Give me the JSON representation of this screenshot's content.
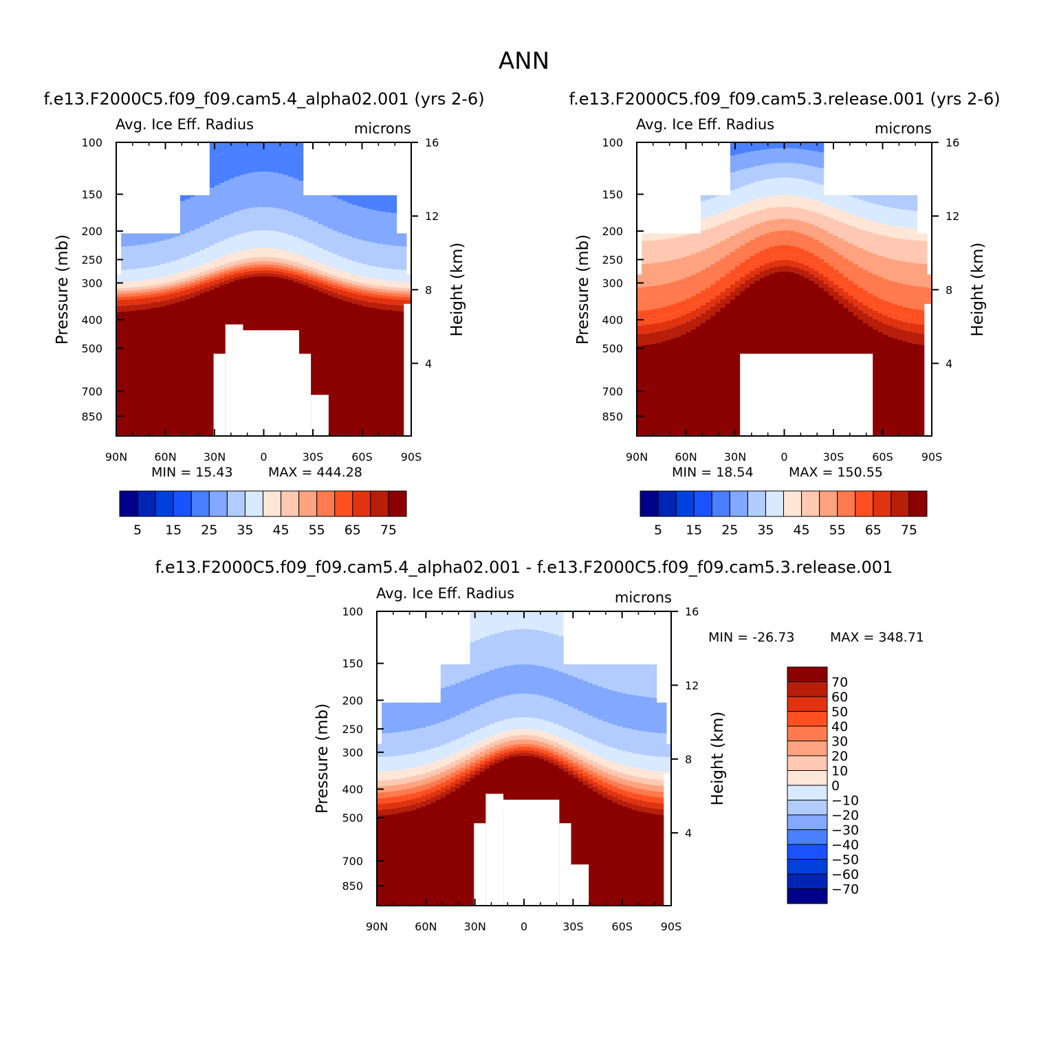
{
  "page_title": "ANN",
  "palette": [
    "#00008b",
    "#0024b3",
    "#0040dd",
    "#1a52ff",
    "#4a7fff",
    "#82a8ff",
    "#b2ccff",
    "#d9e9ff",
    "#ffe6d7",
    "#ffc8b2",
    "#ffa27f",
    "#ff7a4e",
    "#ff5022",
    "#e13310",
    "#b81e0a",
    "#8b0000"
  ],
  "chart_data": [
    {
      "type": "heatmap",
      "title": "f.e13.F2000C5.f09_f09.cam5.4_alpha02.001 (yrs 2-6)",
      "left_label": "Avg. Ice Eff. Radius",
      "right_label": "microns",
      "ylabel": "Pressure (mb)",
      "y2label": "Height (km)",
      "x_ticks": [
        "90N",
        "60N",
        "30N",
        "0",
        "30S",
        "60S",
        "90S"
      ],
      "y_ticks": [
        "100",
        "150",
        "200",
        "250",
        "300",
        "400",
        "500",
        "700",
        "850"
      ],
      "y2_ticks": [
        "16",
        "12",
        "8",
        "4"
      ],
      "min_label": "MIN = 15.43",
      "max_label": "MAX = 444.28",
      "min": 15.43,
      "max": 444.28,
      "colorbar_labels": [
        "5",
        "15",
        "25",
        "35",
        "45",
        "55",
        "65",
        "75"
      ]
    },
    {
      "type": "heatmap",
      "title": "f.e13.F2000C5.f09_f09.cam5.3.release.001 (yrs 2-6)",
      "left_label": "Avg. Ice Eff. Radius",
      "right_label": "microns",
      "ylabel": "Pressure (mb)",
      "y2label": "Height (km)",
      "x_ticks": [
        "90N",
        "60N",
        "30N",
        "0",
        "30S",
        "60S",
        "90S"
      ],
      "y_ticks": [
        "100",
        "150",
        "200",
        "250",
        "300",
        "400",
        "500",
        "700",
        "850"
      ],
      "y2_ticks": [
        "16",
        "12",
        "8",
        "4"
      ],
      "min_label": "MIN = 18.54",
      "max_label": "MAX = 150.55",
      "min": 18.54,
      "max": 150.55,
      "colorbar_labels": [
        "5",
        "15",
        "25",
        "35",
        "45",
        "55",
        "65",
        "75"
      ]
    },
    {
      "type": "heatmap",
      "title": "f.e13.F2000C5.f09_f09.cam5.4_alpha02.001 - f.e13.F2000C5.f09_f09.cam5.3.release.001",
      "left_label": "Avg. Ice Eff. Radius",
      "right_label": "microns",
      "ylabel": "Pressure (mb)",
      "y2label": "Height (km)",
      "x_ticks": [
        "90N",
        "60N",
        "30N",
        "0",
        "30S",
        "60S",
        "90S"
      ],
      "y_ticks": [
        "100",
        "150",
        "200",
        "250",
        "300",
        "400",
        "500",
        "700",
        "850"
      ],
      "y2_ticks": [
        "16",
        "12",
        "8",
        "4"
      ],
      "min_label": "MIN = -26.73",
      "max_label": "MAX = 348.71",
      "min": -26.73,
      "max": 348.71,
      "colorbar_labels": [
        "70",
        "60",
        "50",
        "40",
        "30",
        "20",
        "10",
        "0",
        "-10",
        "-20",
        "-30",
        "-40",
        "-50",
        "-60",
        "-70"
      ]
    }
  ]
}
